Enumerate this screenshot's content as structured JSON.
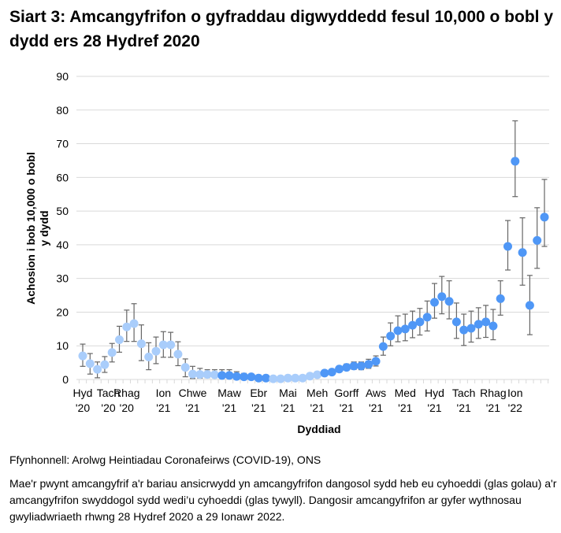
{
  "title": "Siart 3: Amcangyfrifon o gyfraddau digwyddedd fesul 10,000 o bobl y dydd ers 28 Hydref 2020",
  "source": "Ffynhonnell: Arolwg Heintiadau Coronafeirws (COVID-19), ONS",
  "note": "Mae'r pwynt amcangyfrif a'r bariau ansicrwydd yn amcangyfrifon dangosol sydd heb eu cyhoeddi (glas golau) a'r amcangyfrifon swyddogol sydd wedi’u cyhoeddi (glas tywyll). Dangosir amcangyfrifon ar gyfer wythnosau gwyliadwriaeth rhwng 28 Hydref 2020 a 29 Ionawr 2022.",
  "colors": {
    "unpublished": "#a9cdfb",
    "published": "#4f97f6",
    "error_bar": "#666666",
    "grid": "#d9d9d9"
  },
  "chart_data": {
    "type": "scatter",
    "xlabel": "Dyddiad",
    "ylabel": [
      "Achosion i bob 10,000 o bobl",
      "y dydd"
    ],
    "ylim": [
      0,
      90
    ],
    "yticks": [
      0,
      10,
      20,
      30,
      40,
      50,
      60,
      70,
      80,
      90
    ],
    "grid": true,
    "xtick_labels": [
      [
        "Hyd",
        "'20"
      ],
      [
        "Tach",
        "'20"
      ],
      [
        "Rhag",
        "'20"
      ],
      [
        "Ion",
        "'21"
      ],
      [
        "Chwe",
        "'21"
      ],
      [
        "Maw",
        "'21"
      ],
      [
        "Ebr",
        "'21"
      ],
      [
        "Mai",
        "'21"
      ],
      [
        "Meh",
        "'21"
      ],
      [
        "Gorff",
        "'21"
      ],
      [
        "Aws",
        "'21"
      ],
      [
        "Med",
        "'21"
      ],
      [
        "Hyd",
        "'21"
      ],
      [
        "Tach",
        "'21"
      ],
      [
        "Rhag",
        "'21"
      ],
      [
        "Ion",
        "'22"
      ]
    ],
    "points": [
      {
        "v": 7.0,
        "lo": 3.9,
        "hi": 10.5,
        "pub": false
      },
      {
        "v": 4.7,
        "lo": 1.6,
        "hi": 7.7,
        "pub": false
      },
      {
        "v": 3.0,
        "lo": 0.5,
        "hi": 5.2,
        "pub": false
      },
      {
        "v": 4.4,
        "lo": 2.1,
        "hi": 6.8,
        "pub": false
      },
      {
        "v": 8.0,
        "lo": 5.2,
        "hi": 10.7,
        "pub": false
      },
      {
        "v": 11.8,
        "lo": 8.1,
        "hi": 15.8,
        "pub": false
      },
      {
        "v": 15.6,
        "lo": 11.3,
        "hi": 20.6,
        "pub": false
      },
      {
        "v": 16.6,
        "lo": 11.3,
        "hi": 22.5,
        "pub": false
      },
      {
        "v": 10.6,
        "lo": 5.6,
        "hi": 16.2,
        "pub": false
      },
      {
        "v": 6.7,
        "lo": 2.9,
        "hi": 10.9,
        "pub": false
      },
      {
        "v": 8.4,
        "lo": 4.7,
        "hi": 12.6,
        "pub": false
      },
      {
        "v": 10.3,
        "lo": 6.6,
        "hi": 14.2,
        "pub": false
      },
      {
        "v": 10.3,
        "lo": 6.6,
        "hi": 14.0,
        "pub": false
      },
      {
        "v": 7.5,
        "lo": 4.1,
        "hi": 11.2,
        "pub": false
      },
      {
        "v": 3.6,
        "lo": 0.8,
        "hi": 6.1,
        "pub": false
      },
      {
        "v": 1.6,
        "lo": 0.3,
        "hi": 3.9,
        "pub": false
      },
      {
        "v": 1.5,
        "lo": 0.4,
        "hi": 3.3,
        "pub": false
      },
      {
        "v": 1.5,
        "lo": 0.5,
        "hi": 2.9,
        "pub": false
      },
      {
        "v": 1.4,
        "lo": 0.5,
        "hi": 2.9,
        "pub": false
      },
      {
        "v": 1.2,
        "lo": 0.5,
        "hi": 2.9,
        "pub": true
      },
      {
        "v": 1.2,
        "lo": 0.5,
        "hi": 2.9,
        "pub": true
      },
      {
        "v": 0.9,
        "lo": 0.4,
        "hi": 2.3,
        "pub": true
      },
      {
        "v": 0.8,
        "lo": 0.3,
        "hi": 1.8,
        "pub": true
      },
      {
        "v": 0.8,
        "lo": 0.3,
        "hi": 1.6,
        "pub": true
      },
      {
        "v": 0.4,
        "lo": 0.1,
        "hi": 1.0,
        "pub": true
      },
      {
        "v": 0.4,
        "lo": 0.1,
        "hi": 1.0,
        "pub": true
      },
      {
        "v": 0.2,
        "lo": 0.0,
        "hi": 0.7,
        "pub": false
      },
      {
        "v": 0.2,
        "lo": 0.0,
        "hi": 0.7,
        "pub": false
      },
      {
        "v": 0.4,
        "lo": 0.1,
        "hi": 0.9,
        "pub": false
      },
      {
        "v": 0.4,
        "lo": 0.1,
        "hi": 0.9,
        "pub": false
      },
      {
        "v": 0.4,
        "lo": 0.1,
        "hi": 0.9,
        "pub": false
      },
      {
        "v": 1.0,
        "lo": 0.5,
        "hi": 1.6,
        "pub": false
      },
      {
        "v": 1.4,
        "lo": 0.9,
        "hi": 2.0,
        "pub": false
      },
      {
        "v": 1.9,
        "lo": 1.4,
        "hi": 2.5,
        "pub": true
      },
      {
        "v": 2.2,
        "lo": 1.6,
        "hi": 3.0,
        "pub": true
      },
      {
        "v": 3.1,
        "lo": 2.4,
        "hi": 3.9,
        "pub": true
      },
      {
        "v": 3.6,
        "lo": 2.8,
        "hi": 4.6,
        "pub": true
      },
      {
        "v": 4.0,
        "lo": 3.0,
        "hi": 5.2,
        "pub": true
      },
      {
        "v": 4.0,
        "lo": 2.9,
        "hi": 5.2,
        "pub": true
      },
      {
        "v": 4.5,
        "lo": 3.3,
        "hi": 6.0,
        "pub": true
      },
      {
        "v": 5.4,
        "lo": 4.0,
        "hi": 7.0,
        "pub": true
      },
      {
        "v": 9.8,
        "lo": 7.2,
        "hi": 12.6,
        "pub": true
      },
      {
        "v": 12.9,
        "lo": 10.0,
        "hi": 16.8,
        "pub": true
      },
      {
        "v": 14.5,
        "lo": 11.2,
        "hi": 18.9,
        "pub": true
      },
      {
        "v": 15.0,
        "lo": 11.5,
        "hi": 19.4,
        "pub": true
      },
      {
        "v": 16.1,
        "lo": 12.4,
        "hi": 20.3,
        "pub": true
      },
      {
        "v": 17.1,
        "lo": 13.2,
        "hi": 21.1,
        "pub": true
      },
      {
        "v": 18.5,
        "lo": 14.4,
        "hi": 23.3,
        "pub": true
      },
      {
        "v": 22.9,
        "lo": 18.2,
        "hi": 28.5,
        "pub": true
      },
      {
        "v": 24.6,
        "lo": 19.5,
        "hi": 30.6,
        "pub": true
      },
      {
        "v": 23.2,
        "lo": 18.0,
        "hi": 29.3,
        "pub": true
      },
      {
        "v": 17.1,
        "lo": 12.2,
        "hi": 22.7,
        "pub": true
      },
      {
        "v": 14.7,
        "lo": 10.1,
        "hi": 19.4,
        "pub": true
      },
      {
        "v": 15.2,
        "lo": 11.1,
        "hi": 20.3,
        "pub": true
      },
      {
        "v": 16.4,
        "lo": 12.2,
        "hi": 21.3,
        "pub": true
      },
      {
        "v": 17.1,
        "lo": 12.5,
        "hi": 22.0,
        "pub": true
      },
      {
        "v": 15.9,
        "lo": 11.8,
        "hi": 20.8,
        "pub": true
      },
      {
        "v": 24.0,
        "lo": 19.1,
        "hi": 29.3,
        "pub": true
      },
      {
        "v": 39.5,
        "lo": 32.5,
        "hi": 47.2,
        "pub": true
      },
      {
        "v": 64.8,
        "lo": 54.3,
        "hi": 76.8,
        "pub": true
      },
      {
        "v": 37.7,
        "lo": 28.0,
        "hi": 48.0,
        "pub": true
      },
      {
        "v": 22.0,
        "lo": 13.3,
        "hi": 30.9,
        "pub": true
      },
      {
        "v": 41.3,
        "lo": 33.0,
        "hi": 51.0,
        "pub": true
      },
      {
        "v": 48.2,
        "lo": 39.5,
        "hi": 59.4,
        "pub": true
      }
    ]
  }
}
